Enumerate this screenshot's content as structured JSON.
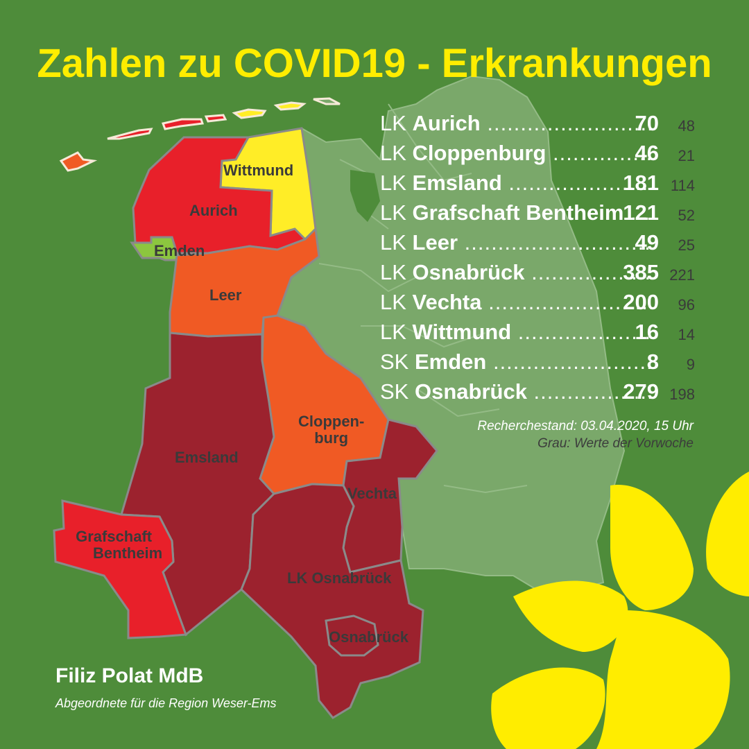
{
  "title": "Zahlen zu COVID19 - Erkrankungen",
  "stats": [
    {
      "prefix": "LK",
      "name": "Aurich",
      "current": "70",
      "previous": "48"
    },
    {
      "prefix": "LK",
      "name": "Cloppenburg",
      "current": "46",
      "previous": "21"
    },
    {
      "prefix": "LK",
      "name": "Emsland",
      "current": "181",
      "previous": "114"
    },
    {
      "prefix": "LK",
      "name": "Grafschaft Bentheim",
      "current": "121",
      "previous": "52"
    },
    {
      "prefix": "LK",
      "name": "Leer",
      "current": "49",
      "previous": "25"
    },
    {
      "prefix": "LK",
      "name": "Osnabrück",
      "current": "385",
      "previous": "221"
    },
    {
      "prefix": "LK",
      "name": "Vechta",
      "current": "200",
      "previous": "96"
    },
    {
      "prefix": "LK",
      "name": "Wittmund",
      "current": "16",
      "previous": "14"
    },
    {
      "prefix": "SK",
      "name": "Emden",
      "current": "8",
      "previous": "9"
    },
    {
      "prefix": "SK",
      "name": "Osnabrück",
      "current": "279",
      "previous": "198"
    }
  ],
  "note_date": "Recherchestand: 03.04.2020, 15 Uhr",
  "note_grey": "Grau: Werte der Vorwoche",
  "map_labels": {
    "wittmund": "Wittmund",
    "aurich": "Aurich",
    "emden": "Emden",
    "leer": "Leer",
    "cloppenburg_1": "Cloppen-",
    "cloppenburg_2": "burg",
    "emsland": "Emsland",
    "vechta": "Vechta",
    "grafschaft_1": "Grafschaft",
    "grafschaft_2": "Bentheim",
    "lk_osnabrueck": "LK Osnabrück",
    "osnabrueck": "Osnabrück"
  },
  "footer": {
    "name": "Filiz Polat MdB",
    "subtitle": "Abgeordnete für die Region Weser-Ems"
  },
  "colors": {
    "background": "#4e8c3a",
    "title": "#ffed00",
    "red": "#e8202a",
    "yellow": "#ffed27",
    "orange": "#f05a24",
    "dark_red": "#9c222e",
    "light_green": "#8cc63f",
    "pale_green": "#7aa86a",
    "sunflower": "#ffed00"
  },
  "icons": [
    "sunflower-icon"
  ]
}
